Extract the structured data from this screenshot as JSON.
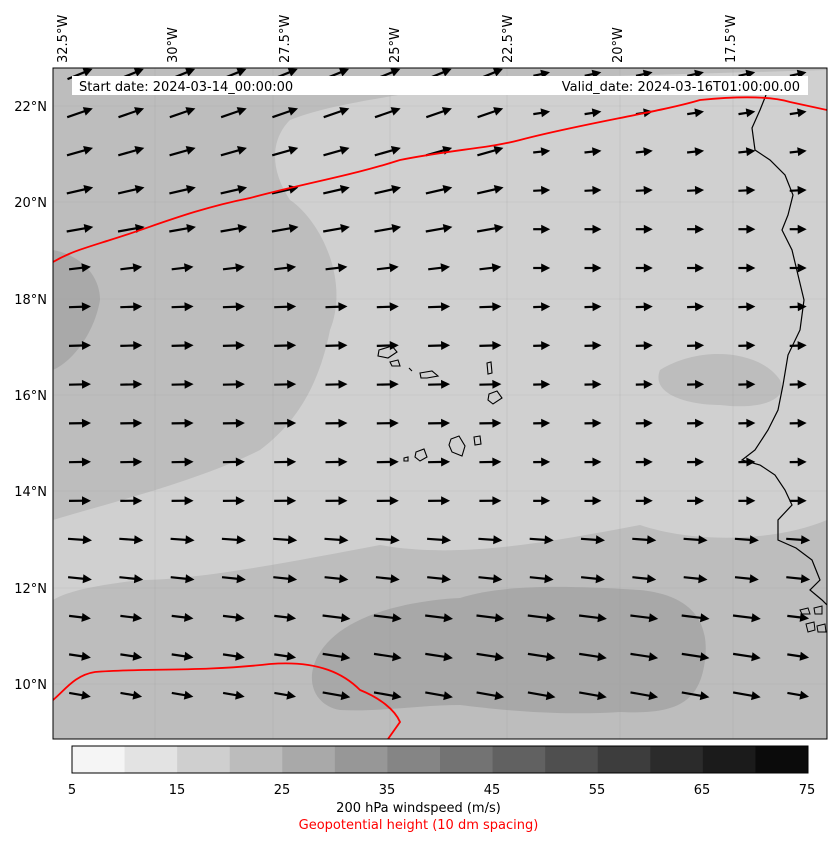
{
  "map": {
    "start_label": "Start date: 2024-03-14_00:00:00",
    "valid_label": "Valid_date: 2024-03-16T01:00:00.00",
    "lon_labels": [
      "32.5°W",
      "30°W",
      "27.5°W",
      "25°W",
      "22.5°W",
      "20°W",
      "17.5°W"
    ],
    "lat_labels": [
      "22°N",
      "20°N",
      "18°N",
      "16°N",
      "14°N",
      "12°N",
      "10°N"
    ],
    "contour_color": "#ff0000",
    "coast_color": "#000000",
    "arrow_color": "#000000"
  },
  "colorbar": {
    "ticks": [
      "5",
      "15",
      "25",
      "35",
      "45",
      "55",
      "65",
      "75"
    ],
    "colors": [
      "#f5f5f5",
      "#e3e3e3",
      "#cfcfcf",
      "#bcbcbc",
      "#a9a9a9",
      "#979797",
      "#858585",
      "#737373",
      "#616161",
      "#4f4f4f",
      "#3d3d3d",
      "#2b2b2b",
      "#1b1b1b",
      "#0b0b0b"
    ],
    "label": "200 hPa windspeed (m/s)",
    "sublabel": "Geopotential height (10 dm spacing)",
    "sublabel_color": "#ff0000"
  }
}
